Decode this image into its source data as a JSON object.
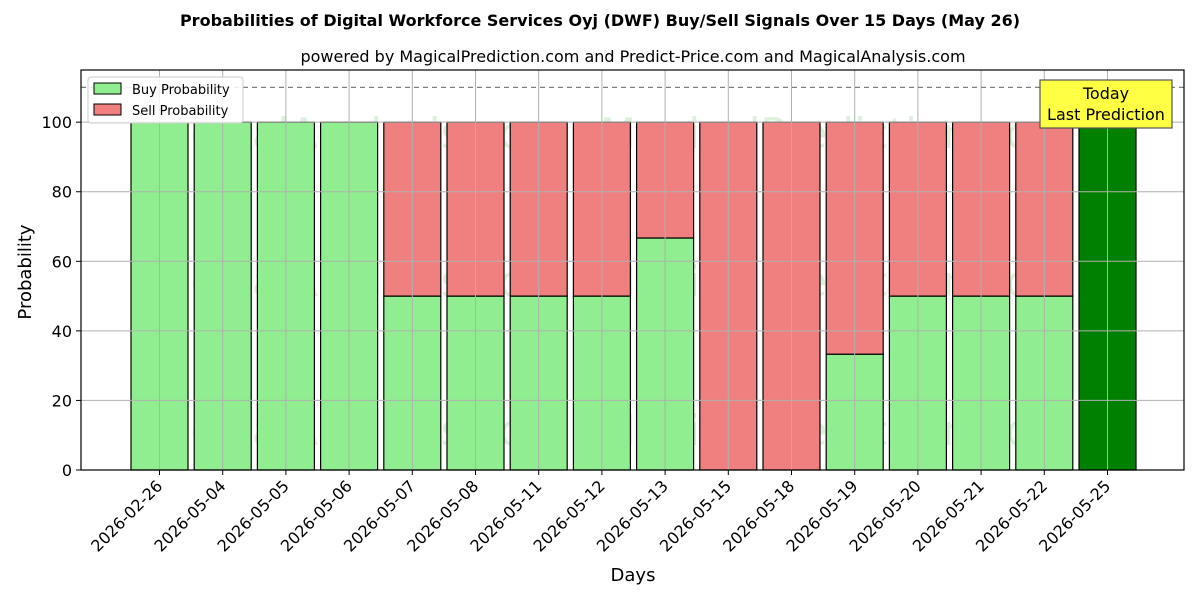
{
  "chart_data": {
    "type": "bar",
    "stacked": true,
    "title": "Probabilities of Digital Workforce Services Oyj (DWF) Buy/Sell Signals Over 15 Days (May 26)",
    "subtitle": "powered by MagicalPrediction.com and Predict-Price.com and MagicalAnalysis.com",
    "xlabel": "Days",
    "ylabel": "Probability",
    "ylim": [
      0,
      115
    ],
    "yticks": [
      0,
      20,
      40,
      60,
      80,
      100
    ],
    "reference_line": 110,
    "grid": true,
    "legend_position": "top-left",
    "categories": [
      "2026-02-26",
      "2026-05-04",
      "2026-05-05",
      "2026-05-06",
      "2026-05-07",
      "2026-05-08",
      "2026-05-11",
      "2026-05-12",
      "2026-05-13",
      "2026-05-15",
      "2026-05-18",
      "2026-05-19",
      "2026-05-20",
      "2026-05-21",
      "2026-05-22",
      "2026-05-25"
    ],
    "series": [
      {
        "name": "Buy Probability",
        "color": "#90ee90",
        "values": [
          100,
          100,
          100,
          100,
          50,
          50,
          50,
          50,
          66.7,
          0,
          0,
          33.3,
          50,
          50,
          50,
          100
        ]
      },
      {
        "name": "Sell Probability",
        "color": "#f08080",
        "values": [
          0,
          0,
          0,
          0,
          50,
          50,
          50,
          50,
          33.3,
          100,
          100,
          66.7,
          50,
          50,
          50,
          0
        ]
      }
    ],
    "highlight": {
      "index": 15,
      "color": "#008000"
    },
    "annotation": {
      "lines": [
        "Today",
        "Last Prediction"
      ],
      "background": "#ffff44"
    },
    "watermarks": [
      "MagicalAnalysis.com",
      "MagicalPrediction.com"
    ]
  }
}
